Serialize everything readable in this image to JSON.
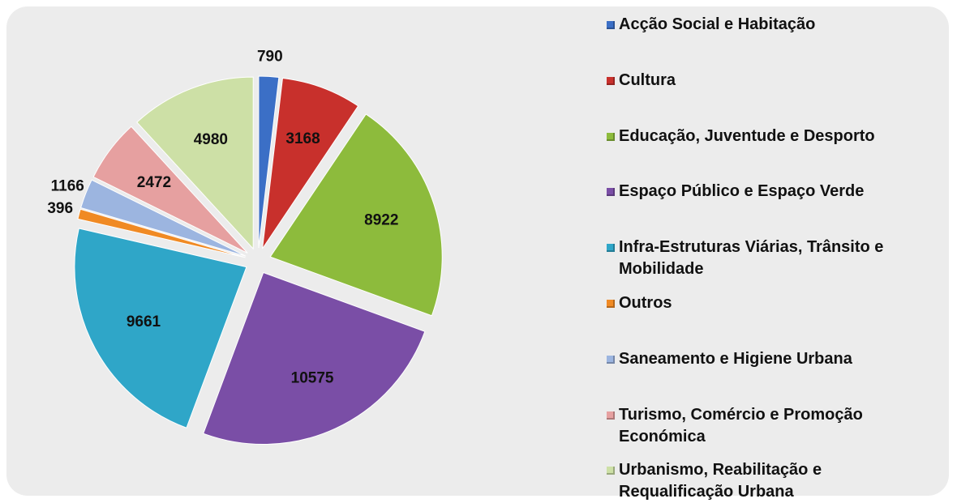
{
  "chart_data": {
    "type": "pie",
    "categories": [
      "Acção Social e Habitação",
      "Cultura",
      "Educação, Juventude e Desporto",
      "Espaço Público e Espaço Verde",
      "Infra-Estruturas Viárias, Trânsito e Mobilidade",
      "Outros",
      "Saneamento e Higiene Urbana",
      "Turismo, Comércio e Promoção Económica",
      "Urbanismo, Reabilitação e Requalificação Urbana"
    ],
    "values": [
      790,
      3168,
      8922,
      10575,
      9661,
      396,
      1166,
      2472,
      4980
    ],
    "colors": [
      "#3b6fc6",
      "#c8302c",
      "#8dbb3c",
      "#7a4ea6",
      "#2fa6c8",
      "#f08a24",
      "#9cb5e0",
      "#e6a0a0",
      "#cde0a6"
    ]
  }
}
